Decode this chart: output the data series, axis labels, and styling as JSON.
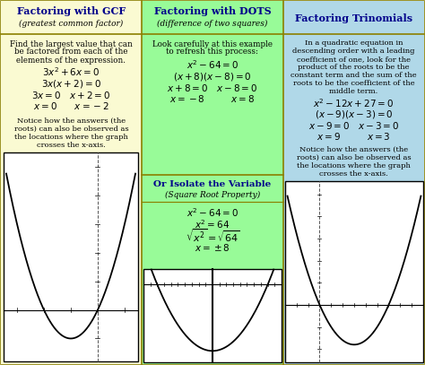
{
  "col1_header": "Factoring with GCF",
  "col1_subheader": "(greatest common factor)",
  "col1_bg": "#FAFAD2",
  "col2_header": "Factoring with DOTS",
  "col2_subheader": "(difference of two squares)",
  "col2_bg": "#98FB98",
  "col2_header2": "Or Isolate the Variable",
  "col2_subheader2": "(Square Root Property)",
  "col3_header": "Factoring Trinomials",
  "col3_bg": "#B0D8E8",
  "header_color": "#00008B",
  "border_color": "#8B8000",
  "graph_border": "#000000"
}
